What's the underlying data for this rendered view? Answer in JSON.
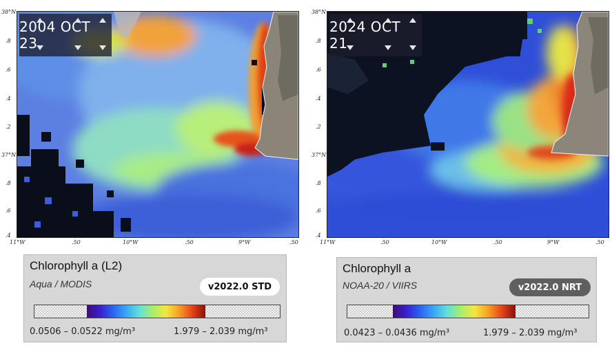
{
  "panels": [
    {
      "date": "2004 OCT 23",
      "lat_labels": [
        "38°N",
        ".8",
        ".6",
        ".4",
        ".2",
        "37°N",
        ".8",
        ".6",
        ".4"
      ],
      "lon_labels": [
        "11°W",
        ".50",
        "10°W",
        ".50",
        "9°W",
        ".50"
      ],
      "legend": {
        "title": "Chlorophyll a (L2)",
        "sensor": "Aqua / MODIS",
        "version": "v2022.0 STD",
        "min_label": "0.0506 – 0.0522 mg/m³",
        "max_label": "1.979 – 2.039 mg/m³"
      }
    },
    {
      "date": "2024 OCT 21",
      "lat_labels": [
        "38°N",
        ".8",
        ".6",
        ".4",
        ".2",
        "37°N",
        ".8",
        ".6",
        ".4"
      ],
      "lon_labels": [
        "11°W",
        ".50",
        "10°W",
        ".50",
        "9°W",
        ".50"
      ],
      "legend": {
        "title": "Chlorophyll a",
        "sensor": "NOAA-20 / VIIRS",
        "version": "v2022.0 NRT",
        "min_label": "0.0423 – 0.0436 mg/m³",
        "max_label": "1.979 – 2.039 mg/m³"
      }
    }
  ],
  "colors": {
    "std_badge_bg": "#ffffff",
    "std_badge_text": "#111111",
    "nrt_badge_bg": "#5f5f5f",
    "nrt_badge_text": "#ffffff",
    "colormap": [
      "#3b0f6f",
      "#3a1fd0",
      "#2a64f0",
      "#3aa8f5",
      "#62e0d8",
      "#a8ee6a",
      "#f5e640",
      "#f6a026",
      "#e4441a",
      "#8d0e0c"
    ]
  }
}
